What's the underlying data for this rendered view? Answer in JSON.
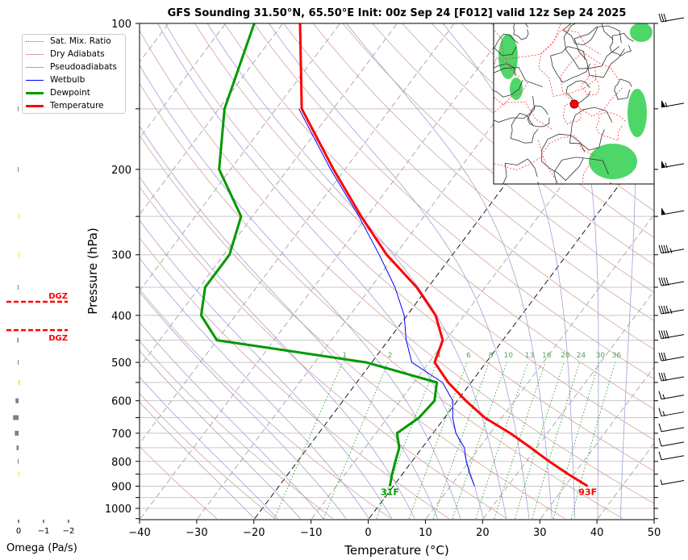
{
  "title": "GFS Sounding 31.50°N, 65.50°E Init: 00z Sep 24 [F012] valid 12z Sep 24 2025",
  "legend": [
    {
      "label": "Sat. Mix. Ratio",
      "color": "#2ca02c",
      "style": "dotted",
      "width": 1
    },
    {
      "label": "Dry Adiabats",
      "color": "#d9a0a0",
      "style": "solid",
      "width": 1
    },
    {
      "label": "Pseudoadiabats",
      "color": "#a0a0d8",
      "style": "solid",
      "width": 1
    },
    {
      "label": "Wetbulb",
      "color": "#0000ff",
      "style": "solid",
      "width": 1
    },
    {
      "label": "Dewpoint",
      "color": "#009900",
      "style": "solid",
      "width": 3
    },
    {
      "label": "Temperature",
      "color": "#ff0000",
      "style": "solid",
      "width": 3
    }
  ],
  "chart_data": {
    "type": "line",
    "subtype": "skew-t log-p",
    "xlabel": "Temperature (°C)",
    "ylabel": "Pressure (hPa)",
    "xlim": [
      -40,
      50
    ],
    "ylim": [
      1050,
      100
    ],
    "y_scale": "log",
    "grid": true,
    "legend_position": "top-left",
    "x_ticks": [
      -40,
      -30,
      -20,
      -10,
      0,
      10,
      20,
      30,
      40,
      50
    ],
    "x_tick_labels": [
      "−40",
      "−30",
      "−20",
      "−10",
      "0",
      "10",
      "20",
      "30",
      "40",
      "50"
    ],
    "y_ticks": [
      100,
      200,
      300,
      400,
      500,
      600,
      700,
      800,
      900,
      1000
    ],
    "y_tick_labels": [
      "100",
      "200",
      "300",
      "400",
      "500",
      "600",
      "700",
      "800",
      "900",
      "1000"
    ],
    "pressure_hpa": [
      100,
      150,
      200,
      250,
      300,
      350,
      400,
      450,
      500,
      550,
      600,
      650,
      700,
      750,
      800,
      850,
      900
    ],
    "series": [
      {
        "name": "Temperature",
        "color": "#ff0000",
        "values": [
          -77,
          -65.5,
          -52,
          -41,
          -31.5,
          -22,
          -15,
          -10.5,
          -9,
          -4,
          1.5,
          7,
          13.5,
          19,
          24,
          29,
          34
        ]
      },
      {
        "name": "Dewpoint",
        "color": "#009900",
        "values": [
          -85,
          -79,
          -72,
          -62,
          -59,
          -59,
          -56,
          -50,
          -21,
          -6,
          -4,
          -4.5,
          -6.3,
          -4,
          -2.9,
          -1.8,
          -0.6
        ]
      },
      {
        "name": "Wetbulb",
        "color": "#0000ff",
        "values": [
          null,
          -66,
          -52.5,
          -41.4,
          -32.8,
          -25.8,
          -20.5,
          -16.9,
          -13,
          -5,
          -0.8,
          1.4,
          4,
          7.4,
          9.5,
          11.8,
          14.2
        ]
      }
    ],
    "surface_labels": {
      "dewpoint": "31F",
      "temperature": "93F"
    },
    "mixing_ratio_labels": [
      "1",
      "2",
      "4",
      "6",
      "8",
      "10",
      "13",
      "16",
      "20",
      "24",
      "30",
      "36"
    ],
    "mixing_ratio_values": [
      1,
      2,
      4,
      6,
      8,
      10,
      13,
      16,
      20,
      24,
      30,
      36
    ],
    "highlight_isotherms_c": [
      -20,
      0
    ],
    "wind_barbs": {
      "pressure_hpa": [
        100,
        150,
        200,
        250,
        300,
        350,
        400,
        450,
        500,
        550,
        600,
        650,
        700,
        750,
        800,
        900
      ],
      "speed_kt": [
        30,
        55,
        55,
        50,
        45,
        40,
        45,
        40,
        30,
        30,
        15,
        15,
        10,
        10,
        10,
        5
      ]
    },
    "omega": {
      "xlabel": "Omega (Pa/s)",
      "ticks": [
        0,
        -1,
        -2
      ],
      "tick_labels": [
        "0",
        "−1",
        "−2"
      ],
      "pressure_hpa": [
        150,
        200,
        250,
        300,
        350,
        450,
        500,
        550,
        600,
        650,
        700,
        750,
        800,
        850
      ],
      "values": [
        0.01,
        0.01,
        -0.03,
        -0.03,
        0.01,
        0.05,
        0.01,
        -0.05,
        0.12,
        0.22,
        0.15,
        0.08,
        0.01,
        -0.03
      ],
      "positive_color": "#808080",
      "negative_color": "#e8e800"
    },
    "dgz": {
      "label": "DGZ",
      "top_hpa": 375,
      "bottom_hpa": 429,
      "color": "#ff0000"
    }
  }
}
